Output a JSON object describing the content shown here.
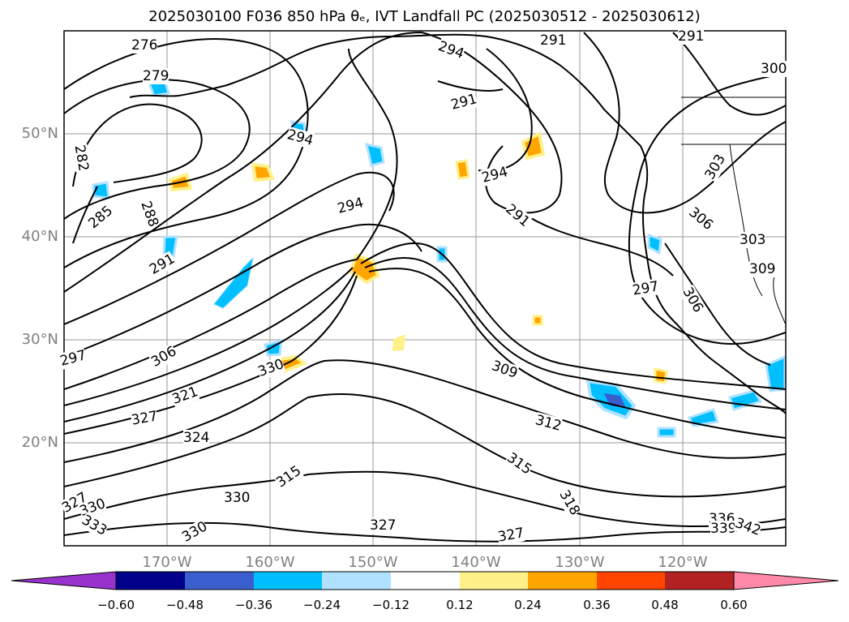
{
  "title": "2025030100 F036 850 hPa θₑ, IVT Landfall PC (2025030512 - 2025030612)",
  "map": {
    "lon_labels": [
      "170°W",
      "160°W",
      "150°W",
      "140°W",
      "130°W",
      "120°W"
    ],
    "lat_labels": [
      "50°N",
      "40°N",
      "30°N",
      "20°N"
    ],
    "contour_labels": [
      "276",
      "279",
      "282",
      "285",
      "288",
      "291",
      "294",
      "291",
      "294",
      "291",
      "291",
      "294",
      "291",
      "294",
      "297",
      "297",
      "300",
      "303",
      "303",
      "306",
      "306",
      "306",
      "309",
      "309",
      "312",
      "315",
      "315",
      "318",
      "321",
      "324",
      "327",
      "327",
      "327",
      "327",
      "330",
      "330",
      "330",
      "330",
      "333",
      "336",
      "339",
      "342"
    ]
  },
  "colorbar": {
    "ticks": [
      "−0.60",
      "−0.48",
      "−0.36",
      "−0.24",
      "−0.12",
      "0.12",
      "0.24",
      "0.36",
      "0.48",
      "0.60"
    ],
    "colors": [
      "#9932cc",
      "#00008b",
      "#3a5fcd",
      "#00bfff",
      "#b0e2ff",
      "#ffffff",
      "#fff08a",
      "#ffa500",
      "#ff4500",
      "#b22222",
      "#ff89a8"
    ]
  },
  "chart_data": {
    "type": "heatmap",
    "title": "2025030100 F036 850 hPa θₑ, IVT Landfall PC (2025030512 - 2025030612)",
    "x_range": [
      "180°W",
      "110°W"
    ],
    "y_range": [
      "10°N",
      "60°N"
    ],
    "contour_levels_theta_e": [
      276,
      279,
      282,
      285,
      288,
      291,
      294,
      297,
      300,
      303,
      306,
      309,
      312,
      315,
      318,
      321,
      324,
      327,
      330,
      333,
      336,
      339,
      342
    ],
    "shading_levels": [
      -0.6,
      -0.48,
      -0.36,
      -0.24,
      -0.12,
      0.12,
      0.24,
      0.36,
      0.48,
      0.6
    ],
    "grid": true
  }
}
